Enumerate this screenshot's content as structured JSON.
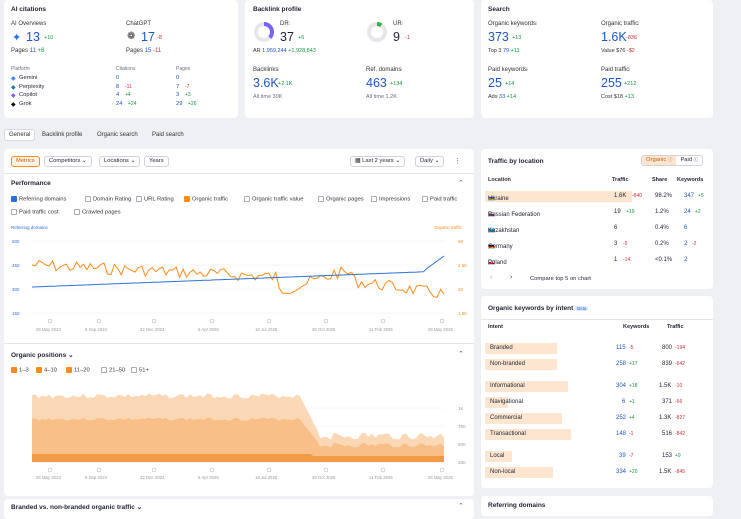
{
  "ai": {
    "title": "AI citations",
    "overviews_label": "AI Overviews",
    "overviews_value": "13",
    "overviews_delta": "+10",
    "overviews_pages_label": "Pages",
    "overviews_pages": "11",
    "overviews_pages_delta": "+8",
    "chatgpt_label": "ChatGPT",
    "chatgpt_value": "17",
    "chatgpt_delta": "-8",
    "chatgpt_pages_label": "Pages",
    "chatgpt_pages": "15",
    "chatgpt_pages_delta": "-11",
    "table_headers": [
      "Platform",
      "Citations",
      "Pages"
    ],
    "rows": [
      {
        "name": "Gemini",
        "cit": "0",
        "cit_d": "",
        "pages": "0",
        "pages_d": "",
        "color": "#4285f4"
      },
      {
        "name": "Perplexity",
        "cit": "8",
        "cit_d": "-11",
        "pages": "7",
        "pages_d": "-7",
        "color": "#20808d"
      },
      {
        "name": "Copilot",
        "cit": "4",
        "cit_d": "+4",
        "pages": "3",
        "pages_d": "+3",
        "color": "#7b61ff"
      },
      {
        "name": "Grok",
        "cit": "24",
        "cit_d": "+24",
        "pages": "29",
        "pages_d": "+26",
        "color": "#111111"
      }
    ]
  },
  "backlink": {
    "title": "Backlink profile",
    "dr_label": "DR",
    "dr_value": "37",
    "dr_delta": "+6",
    "ar_label": "AR",
    "ar_value": "1,959,244",
    "ar_delta": "+1,928,843",
    "ur_label": "UR",
    "ur_value": "9",
    "ur_delta": "-1",
    "backlinks_label": "Backlinks",
    "backlinks_value": "3.6K",
    "backlinks_delta": "+2.1K",
    "backlinks_all": "All time 30K",
    "refdomains_label": "Ref. domains",
    "refdomains_value": "463",
    "refdomains_delta": "+134",
    "refdomains_all": "All time 1.2K"
  },
  "search": {
    "title": "Search",
    "ok_label": "Organic keywords",
    "ok_value": "373",
    "ok_delta": "+13",
    "ok_sub": "Top 3",
    "ok_sub_val": "79",
    "ok_sub_delta": "+11",
    "ot_label": "Organic traffic",
    "ot_value": "1.6K",
    "ot_delta": "-836",
    "ot_sub": "Value",
    "ot_sub_val": "$76",
    "ot_sub_delta": "-$2",
    "pk_label": "Paid keywords",
    "pk_value": "25",
    "pk_delta": "+14",
    "pk_sub": "Ads",
    "pk_sub_val": "33",
    "pk_sub_delta": "+14",
    "pt_label": "Paid traffic",
    "pt_value": "255",
    "pt_delta": "+212",
    "pt_sub": "Cost",
    "pt_sub_val": "$18",
    "pt_sub_delta": "+13"
  },
  "tabs": [
    "General",
    "Backlink profile",
    "Organic search",
    "Paid search"
  ],
  "toolbar": {
    "metrics": "Metrics",
    "competitors": "Competitors",
    "locations": "Locations",
    "years": "Years",
    "period": "Last 2 years",
    "interval": "Daily"
  },
  "performance": {
    "title": "Performance",
    "checks": [
      {
        "label": "Referring domains",
        "state": "bl"
      },
      {
        "label": "Domain Rating",
        "state": ""
      },
      {
        "label": "URL Rating",
        "state": ""
      },
      {
        "label": "Organic traffic",
        "state": "on"
      },
      {
        "label": "Organic traffic value",
        "state": ""
      },
      {
        "label": "Organic pages",
        "state": ""
      },
      {
        "label": "Impressions",
        "state": ""
      },
      {
        "label": "Paid traffic",
        "state": ""
      },
      {
        "label": "Paid traffic cost",
        "state": ""
      },
      {
        "label": "Crawled pages",
        "state": ""
      }
    ],
    "left_axis_title": "Referring domains",
    "right_axis_title": "Organic traffic",
    "left_ticks": [
      "600",
      "450",
      "300",
      "150"
    ],
    "right_ticks": [
      "6K",
      "4.5K",
      "3K",
      "1.5K"
    ],
    "x_ticks": [
      "26 May 2024",
      "5 Sep 2024",
      "22 Dec 2024",
      "6 Apr 2025",
      "18 Jul 2025",
      "30 Oct 2025",
      "11 Feb 2026",
      "26 May 2026"
    ]
  },
  "positions": {
    "title": "Organic positions",
    "checks": [
      {
        "label": "1–3",
        "state": "on"
      },
      {
        "label": "4–10",
        "state": "on"
      },
      {
        "label": "11–20",
        "state": "on"
      },
      {
        "label": "21–50",
        "state": ""
      },
      {
        "label": "51+",
        "state": ""
      }
    ],
    "right_ticks": [
      "1K",
      "750",
      "500",
      "250"
    ],
    "x_ticks": [
      "26 May 2024",
      "5 Sep 2024",
      "22 Dec 2024",
      "6 Apr 2025",
      "18 Jul 2025",
      "30 Oct 2025",
      "11 Feb 2026",
      "26 May 2026"
    ]
  },
  "branded_title": "Branded vs. non-branded organic traffic",
  "location": {
    "title": "Traffic by location",
    "toggle_organic": "Organic",
    "toggle_paid": "Paid",
    "headers": [
      "Location",
      "Traffic",
      "Share",
      "Keywords"
    ],
    "rows": [
      {
        "name": "Ukraine",
        "traffic": "1.6K",
        "td": "-840",
        "share": "98.2%",
        "kw": "347",
        "kd": "+5",
        "flag": [
          "#1a56c4",
          "#ffd500"
        ],
        "bar": 0.98
      },
      {
        "name": "Russian Federation",
        "traffic": "19",
        "td": "+19",
        "share": "1.2%",
        "kw": "24",
        "kd": "+2",
        "flag": [
          "#ffffff",
          "#1a56c4",
          "#d52b1e"
        ],
        "bar": 0
      },
      {
        "name": "Kazakhstan",
        "traffic": "6",
        "td": "",
        "share": "0.4%",
        "kw": "6",
        "kd": "",
        "flag": [
          "#00afca"
        ],
        "bar": 0
      },
      {
        "name": "Germany",
        "traffic": "3",
        "td": "-5",
        "share": "0.2%",
        "kw": "2",
        "kd": "-2",
        "flag": [
          "#000000",
          "#dd0000",
          "#ffce00"
        ],
        "bar": 0
      },
      {
        "name": "Poland",
        "traffic": "1",
        "td": "-14",
        "share": "<0.1%",
        "kw": "2",
        "kd": "",
        "flag": [
          "#ffffff",
          "#dc143c"
        ],
        "bar": 0
      }
    ],
    "compare": "Compare top 5 on chart"
  },
  "intent": {
    "title": "Organic keywords by intent",
    "beta": "Beta",
    "headers": [
      "Intent",
      "Keywords",
      "Traffic"
    ],
    "groups": [
      [
        {
          "name": "Branded",
          "kw": "115",
          "kd": "-5",
          "tr": "800",
          "trd": "-194",
          "bar": 0.8
        },
        {
          "name": "Non-branded",
          "kw": "258",
          "kd": "+17",
          "tr": "839",
          "trd": "-642",
          "bar": 0.8
        }
      ],
      [
        {
          "name": "Informational",
          "kw": "304",
          "kd": "+18",
          "tr": "1.5K",
          "trd": "-10",
          "bar": 0.92
        },
        {
          "name": "Navigational",
          "kw": "6",
          "kd": "+1",
          "tr": "371",
          "trd": "-66",
          "bar": 0.25
        },
        {
          "name": "Commercial",
          "kw": "252",
          "kd": "+4",
          "tr": "1.3K",
          "trd": "-827",
          "bar": 0.85
        },
        {
          "name": "Transactional",
          "kw": "148",
          "kd": "-1",
          "tr": "516",
          "trd": "-842",
          "bar": 0.95
        }
      ],
      [
        {
          "name": "Local",
          "kw": "39",
          "kd": "-7",
          "tr": "153",
          "trd": "+9",
          "bar": 0.3
        },
        {
          "name": "Non-local",
          "kw": "334",
          "kd": "+20",
          "tr": "1.5K",
          "trd": "-845",
          "bar": 0.75
        }
      ]
    ]
  },
  "refdomains_title": "Referring domains",
  "colors": {
    "accent": "#ff8c1a",
    "blue": "#2a6fdb"
  }
}
